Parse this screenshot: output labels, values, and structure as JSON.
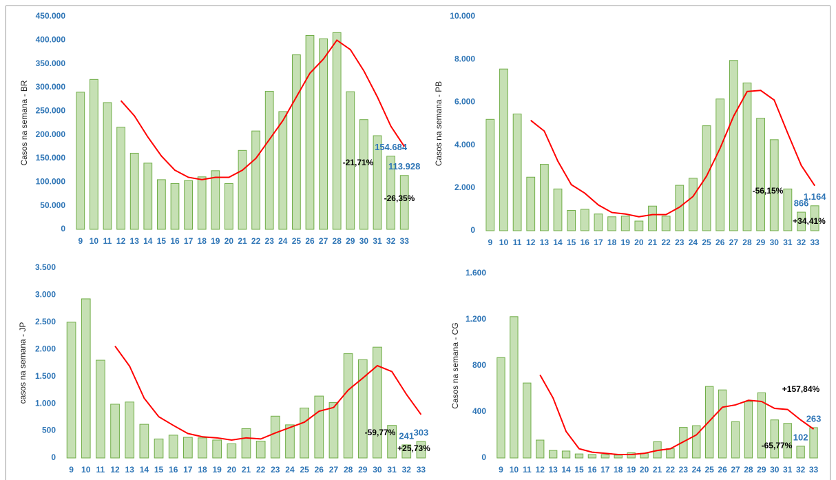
{
  "chart_data": [
    {
      "type": "bar",
      "y_label": "Casos na semana - BR",
      "categories": [
        "9",
        "10",
        "11",
        "12",
        "13",
        "14",
        "15",
        "16",
        "17",
        "18",
        "19",
        "20",
        "21",
        "22",
        "23",
        "24",
        "25",
        "26",
        "27",
        "28",
        "29",
        "30",
        "31",
        "32",
        "33"
      ],
      "series": [
        {
          "type": "bar",
          "color": "#c6e0b4",
          "values": [
            290000,
            317000,
            268000,
            216000,
            161000,
            140000,
            105000,
            97000,
            103000,
            111000,
            124000,
            97000,
            167000,
            208000,
            292000,
            249000,
            369000,
            410000,
            403000,
            416000,
            291000,
            232000,
            198000,
            154684,
            113928
          ],
          "value_labels": [
            null,
            null,
            null,
            null,
            null,
            null,
            null,
            null,
            null,
            null,
            null,
            null,
            null,
            null,
            null,
            null,
            null,
            null,
            null,
            null,
            null,
            null,
            null,
            "154.684",
            "113.928"
          ]
        },
        {
          "type": "line",
          "color": "#ff0000",
          "values": [
            null,
            null,
            null,
            272000,
            240000,
            195000,
            155000,
            125000,
            110000,
            105000,
            110000,
            110000,
            125000,
            150000,
            190000,
            230000,
            280000,
            330000,
            360000,
            400000,
            380000,
            335000,
            280000,
            218000,
            175000
          ]
        }
      ],
      "ylim": [
        0,
        450000
      ],
      "yticks": [
        0,
        {
          "value": 50000,
          "label": "50.000"
        },
        {
          "value": 100000,
          "label": "100.000"
        },
        {
          "value": 150000,
          "label": "150.000"
        },
        {
          "value": 200000,
          "label": "200.000"
        },
        {
          "value": 250000,
          "label": "250.000"
        },
        {
          "value": 300000,
          "label": "300.000"
        },
        {
          "value": 350000,
          "label": "350.000"
        },
        {
          "value": 400000,
          "label": "400.000"
        },
        {
          "value": 450000,
          "label": "450.000"
        }
      ],
      "annotations": [
        "-21,71%",
        "-26,35%"
      ]
    },
    {
      "type": "bar",
      "y_label": "Casos na semana - PB",
      "categories": [
        "9",
        "10",
        "11",
        "12",
        "13",
        "14",
        "15",
        "16",
        "17",
        "18",
        "19",
        "20",
        "21",
        "22",
        "23",
        "24",
        "25",
        "26",
        "27",
        "28",
        "29",
        "30",
        "31",
        "32",
        "33"
      ],
      "series": [
        {
          "type": "bar",
          "color": "#c6e0b4",
          "values": [
            5200,
            7550,
            5450,
            2500,
            3100,
            1950,
            950,
            1000,
            780,
            650,
            680,
            450,
            1150,
            680,
            2120,
            2450,
            4900,
            6150,
            7950,
            6900,
            5250,
            4250,
            1950,
            866,
            1164
          ],
          "value_labels": [
            null,
            null,
            null,
            null,
            null,
            null,
            null,
            null,
            null,
            null,
            null,
            null,
            null,
            null,
            null,
            null,
            null,
            null,
            null,
            null,
            null,
            null,
            null,
            "866",
            "1.164"
          ]
        },
        {
          "type": "line",
          "color": "#ff0000",
          "values": [
            null,
            null,
            null,
            5150,
            4650,
            3250,
            2150,
            1750,
            1200,
            850,
            780,
            650,
            750,
            750,
            1100,
            1600,
            2550,
            3850,
            5350,
            6500,
            6550,
            6100,
            4550,
            3050,
            2100
          ]
        }
      ],
      "ylim": [
        0,
        10000
      ],
      "yticks": [
        0,
        {
          "value": 2000,
          "label": "2.000"
        },
        {
          "value": 4000,
          "label": "4.000"
        },
        {
          "value": 6000,
          "label": "6.000"
        },
        {
          "value": 8000,
          "label": "8.000"
        },
        {
          "value": 10000,
          "label": "10.000"
        }
      ],
      "annotations": [
        "-56,15%",
        "+34,41%"
      ]
    },
    {
      "type": "bar",
      "y_label": "casos na semana - JP",
      "categories": [
        "9",
        "10",
        "11",
        "12",
        "13",
        "14",
        "15",
        "16",
        "17",
        "18",
        "19",
        "20",
        "21",
        "22",
        "23",
        "24",
        "25",
        "26",
        "27",
        "28",
        "29",
        "30",
        "31",
        "32",
        "33"
      ],
      "series": [
        {
          "type": "bar",
          "color": "#c6e0b4",
          "values": [
            2500,
            2930,
            1800,
            990,
            1030,
            620,
            350,
            420,
            380,
            370,
            330,
            260,
            540,
            310,
            770,
            610,
            920,
            1140,
            1020,
            1920,
            1810,
            2040,
            600,
            241,
            303
          ],
          "value_labels": [
            null,
            null,
            null,
            null,
            null,
            null,
            null,
            null,
            null,
            null,
            null,
            null,
            null,
            null,
            null,
            null,
            null,
            null,
            null,
            null,
            null,
            null,
            null,
            "241",
            "303"
          ]
        },
        {
          "type": "line",
          "color": "#ff0000",
          "values": [
            null,
            null,
            null,
            2060,
            1690,
            1100,
            760,
            600,
            450,
            390,
            370,
            330,
            370,
            350,
            460,
            560,
            660,
            860,
            930,
            1250,
            1470,
            1700,
            1590,
            1170,
            800
          ]
        }
      ],
      "ylim": [
        0,
        3500
      ],
      "yticks": [
        0,
        500,
        {
          "value": 1000,
          "label": "1.000"
        },
        {
          "value": 1500,
          "label": "1.500"
        },
        {
          "value": 2000,
          "label": "2.000"
        },
        {
          "value": 2500,
          "label": "2.500"
        },
        {
          "value": 3000,
          "label": "3.000"
        },
        {
          "value": 3500,
          "label": "3.500"
        }
      ],
      "annotations": [
        "-59,77%",
        "+25,73%"
      ]
    },
    {
      "type": "bar",
      "y_label": "Casos na semana - CG",
      "categories": [
        "9",
        "10",
        "11",
        "12",
        "13",
        "14",
        "15",
        "16",
        "17",
        "18",
        "19",
        "20",
        "21",
        "22",
        "23",
        "24",
        "25",
        "26",
        "27",
        "28",
        "29",
        "30",
        "31",
        "32",
        "33"
      ],
      "series": [
        {
          "type": "bar",
          "color": "#c6e0b4",
          "values": [
            870,
            1225,
            650,
            155,
            65,
            60,
            35,
            30,
            30,
            25,
            45,
            40,
            140,
            80,
            265,
            280,
            620,
            590,
            315,
            490,
            565,
            330,
            300,
            102,
            263
          ],
          "value_labels": [
            null,
            null,
            null,
            null,
            null,
            null,
            null,
            null,
            null,
            null,
            null,
            null,
            null,
            null,
            null,
            null,
            null,
            null,
            null,
            null,
            null,
            null,
            null,
            "102",
            "263"
          ]
        },
        {
          "type": "line",
          "color": "#ff0000",
          "values": [
            null,
            null,
            null,
            720,
            520,
            230,
            80,
            50,
            40,
            30,
            30,
            40,
            65,
            80,
            140,
            200,
            320,
            440,
            460,
            500,
            490,
            430,
            420,
            330,
            250
          ]
        }
      ],
      "ylim": [
        0,
        1600
      ],
      "yticks": [
        0,
        400,
        800,
        {
          "value": 1200,
          "label": "1.200"
        },
        {
          "value": 1600,
          "label": "1.600"
        }
      ],
      "annotations": [
        "+157,84%",
        "-65,77%"
      ]
    }
  ]
}
